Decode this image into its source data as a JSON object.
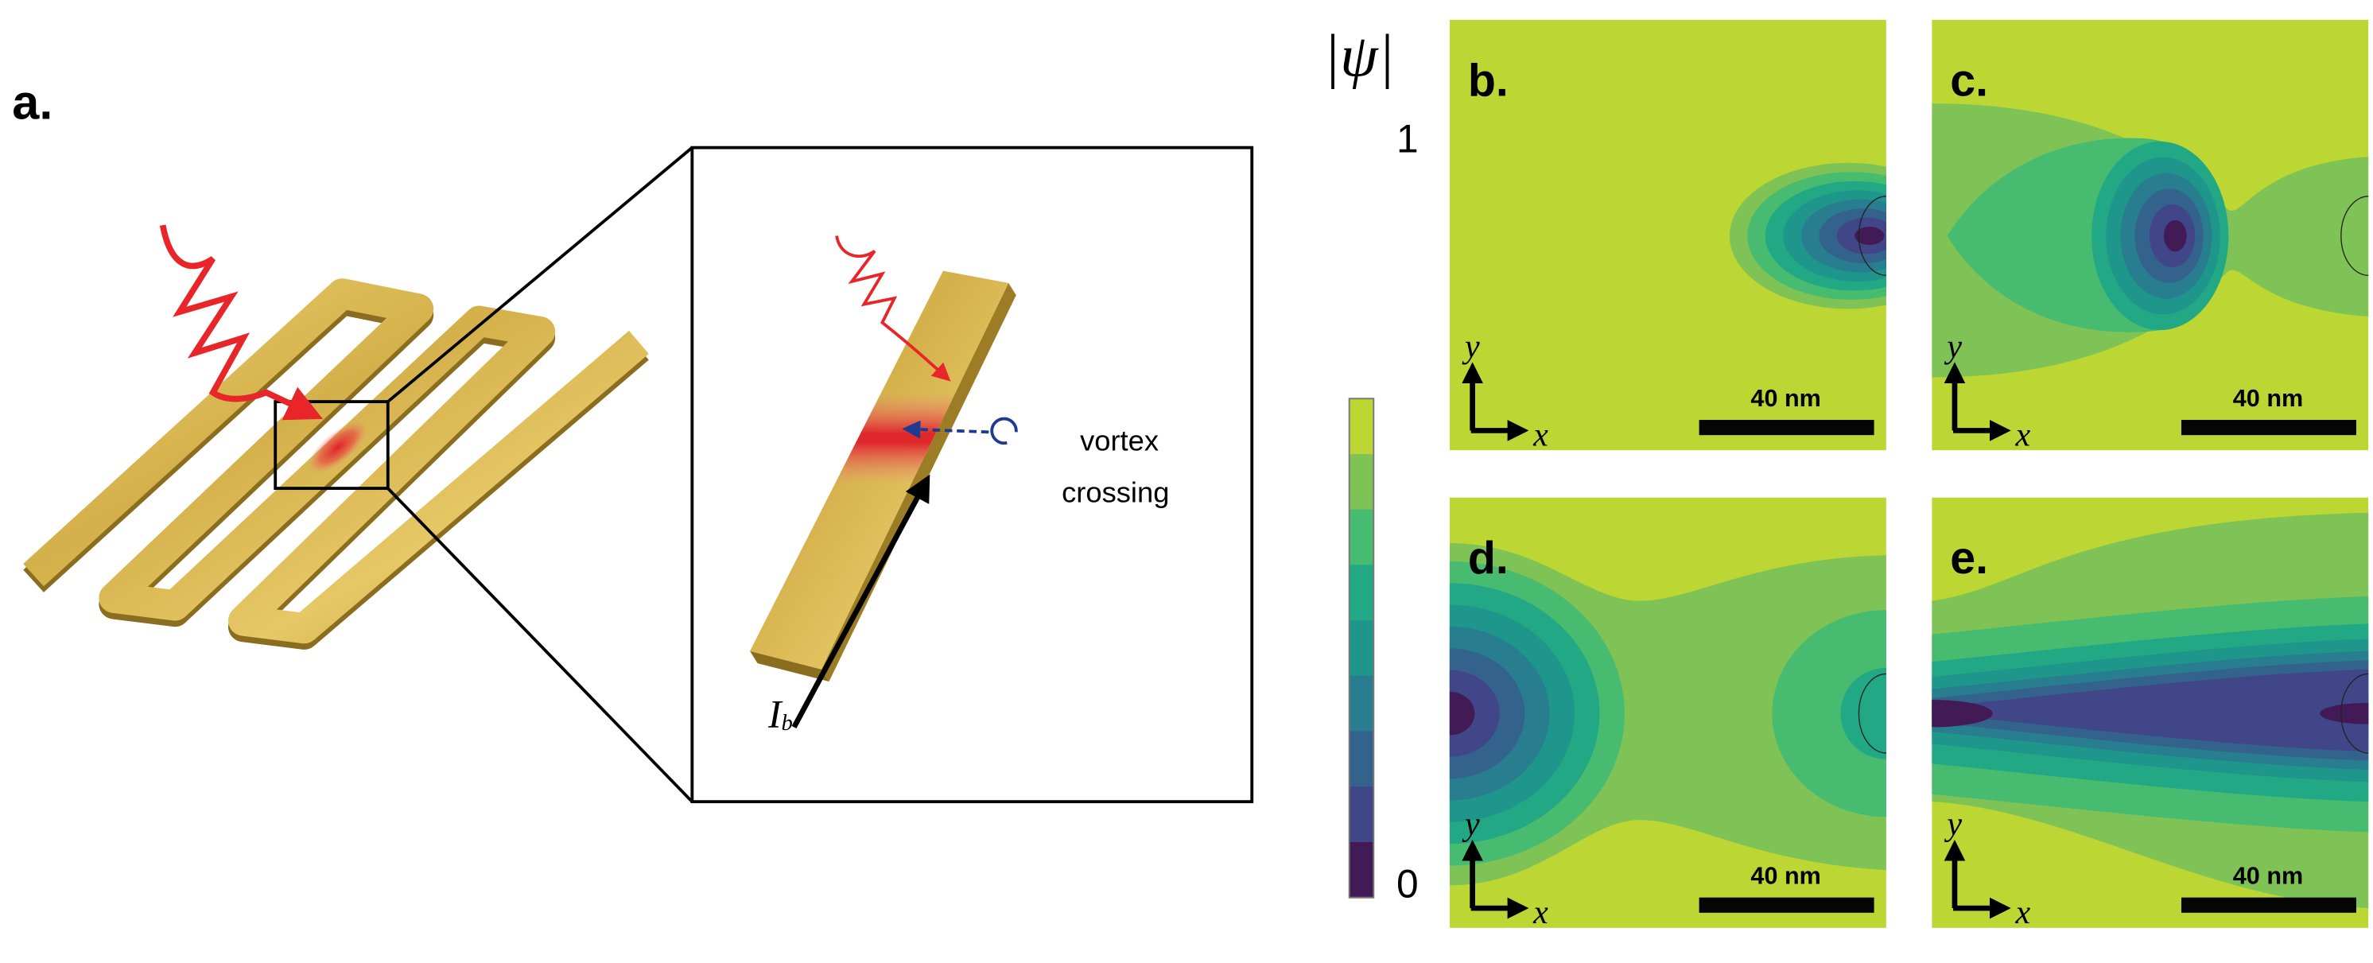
{
  "panel_a": {
    "label": "a.",
    "annotation": [
      "vortex",
      "crossing"
    ],
    "current_symbol": "I",
    "current_subscript": "b",
    "colors": {
      "gold": "#d9b64a",
      "photon": "#e8262a",
      "vortex": "#1f3a93"
    }
  },
  "colorbar": {
    "title": "|ψ|",
    "max_label": "1",
    "min_label": "0",
    "levels": [
      "#bcd733",
      "#7fc356",
      "#47bb6f",
      "#22a884",
      "#1f968b",
      "#287d8e",
      "#33638d",
      "#404688",
      "#421a55"
    ]
  },
  "panels": [
    {
      "label": "b.",
      "scale_bar": "40 nm",
      "axis_x": "x",
      "axis_y": "y"
    },
    {
      "label": "c.",
      "scale_bar": "40 nm",
      "axis_x": "x",
      "axis_y": "y"
    },
    {
      "label": "d.",
      "scale_bar": "40 nm",
      "axis_x": "x",
      "axis_y": "y"
    },
    {
      "label": "e.",
      "scale_bar": "40 nm",
      "axis_x": "x",
      "axis_y": "y"
    }
  ]
}
